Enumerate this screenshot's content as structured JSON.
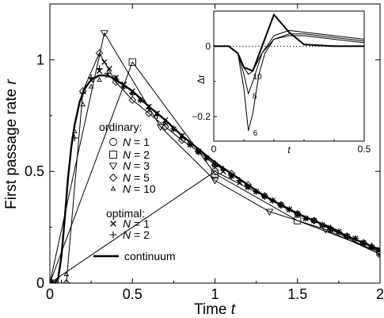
{
  "chart_data": [
    {
      "type": "line",
      "xlabel": "Time",
      "xlabel_var": "t",
      "ylabel": "First passage rate",
      "ylabel_var": "r",
      "xlim": [
        0,
        2
      ],
      "ylim": [
        0,
        1.25
      ],
      "xticks": [
        0,
        0.5,
        1,
        1.5,
        2
      ],
      "xtick_labels": [
        "0",
        "0.5",
        "1",
        "1.5",
        "2"
      ],
      "yticks": [
        0,
        0.5,
        1
      ],
      "ytick_labels": [
        "0",
        "0.5",
        "1"
      ],
      "grid": false,
      "legend": {
        "placement": "center",
        "ordinary_title": "ordinary:",
        "optimal_title": "optimal:",
        "entries": [
          {
            "marker": "circle",
            "text": "= 1",
            "var": "N"
          },
          {
            "marker": "square",
            "text": "= 2",
            "var": "N"
          },
          {
            "marker": "triangle-down",
            "text": "= 3",
            "var": "N"
          },
          {
            "marker": "diamond",
            "text": "= 5",
            "var": "N"
          },
          {
            "marker": "triangle-up",
            "text": "= 10",
            "var": "N"
          },
          {
            "marker": "x",
            "text": "= 1",
            "var": "N"
          },
          {
            "marker": "plus",
            "text": "= 2",
            "var": "N"
          },
          {
            "marker": "line",
            "text": "continuum"
          }
        ]
      },
      "series": [
        {
          "name": "continuum",
          "marker": "line",
          "width": 2.4,
          "points": [
            [
              0.0,
              0
            ],
            [
              0.03,
              0.001
            ],
            [
              0.05,
              0.02
            ],
            [
              0.07,
              0.12
            ],
            [
              0.09,
              0.29
            ],
            [
              0.11,
              0.47
            ],
            [
              0.13,
              0.61
            ],
            [
              0.15,
              0.71
            ],
            [
              0.18,
              0.81
            ],
            [
              0.21,
              0.87
            ],
            [
              0.25,
              0.91
            ],
            [
              0.3,
              0.93
            ],
            [
              0.35,
              0.93
            ],
            [
              0.4,
              0.91
            ],
            [
              0.5,
              0.86
            ],
            [
              0.6,
              0.79
            ],
            [
              0.7,
              0.73
            ],
            [
              0.8,
              0.66
            ],
            [
              0.9,
              0.6
            ],
            [
              1.0,
              0.54
            ],
            [
              1.1,
              0.49
            ],
            [
              1.2,
              0.44
            ],
            [
              1.3,
              0.39
            ],
            [
              1.4,
              0.35
            ],
            [
              1.5,
              0.31
            ],
            [
              1.6,
              0.28
            ],
            [
              1.7,
              0.25
            ],
            [
              1.8,
              0.21
            ],
            [
              1.9,
              0.18
            ],
            [
              2.0,
              0.15
            ]
          ]
        },
        {
          "name": "N = 1",
          "marker": "circle",
          "line": true,
          "points": [
            [
              0.0,
              0
            ],
            [
              1.0,
              0.5
            ],
            [
              2.0,
              0.13
            ]
          ]
        },
        {
          "name": "N = 2",
          "marker": "square",
          "line": true,
          "points": [
            [
              0.0,
              0
            ],
            [
              0.5,
              0.99
            ],
            [
              1.0,
              0.49
            ],
            [
              1.5,
              0.28
            ],
            [
              2.0,
              0.14
            ]
          ]
        },
        {
          "name": "N = 3",
          "marker": "triangle-down",
          "line": true,
          "points": [
            [
              0.0,
              0
            ],
            [
              0.33,
              1.12
            ],
            [
              0.67,
              0.7
            ],
            [
              1.0,
              0.46
            ],
            [
              1.33,
              0.32
            ],
            [
              1.67,
              0.24
            ],
            [
              2.0,
              0.13
            ]
          ]
        },
        {
          "name": "N = 5",
          "marker": "diamond",
          "line": true,
          "points": [
            [
              0.0,
              0
            ],
            [
              0.1,
              0.0
            ],
            [
              0.2,
              0.86
            ],
            [
              0.3,
              1.03
            ],
            [
              0.4,
              0.9
            ],
            [
              0.5,
              0.82
            ],
            [
              0.6,
              0.76
            ],
            [
              0.7,
              0.7
            ],
            [
              0.8,
              0.64
            ],
            [
              0.9,
              0.59
            ],
            [
              1.0,
              0.53
            ],
            [
              1.1,
              0.49
            ],
            [
              1.2,
              0.44
            ],
            [
              1.3,
              0.39
            ],
            [
              1.4,
              0.35
            ],
            [
              1.5,
              0.31
            ],
            [
              1.6,
              0.28
            ],
            [
              1.7,
              0.24
            ],
            [
              1.8,
              0.21
            ],
            [
              1.9,
              0.18
            ],
            [
              2.0,
              0.14
            ]
          ]
        },
        {
          "name": "N = 10",
          "marker": "triangle-up",
          "line": false,
          "points": [
            [
              0.05,
              0
            ],
            [
              0.1,
              0.04
            ],
            [
              0.15,
              0.68
            ],
            [
              0.2,
              0.8
            ],
            [
              0.25,
              0.88
            ],
            [
              0.3,
              0.91
            ],
            [
              0.35,
              0.93
            ],
            [
              0.4,
              0.92
            ],
            [
              0.45,
              0.88
            ],
            [
              0.5,
              0.85
            ],
            [
              0.55,
              0.82
            ],
            [
              0.6,
              0.79
            ],
            [
              0.65,
              0.76
            ],
            [
              0.7,
              0.72
            ],
            [
              0.75,
              0.69
            ],
            [
              0.8,
              0.66
            ],
            [
              0.85,
              0.62
            ],
            [
              0.9,
              0.59
            ],
            [
              0.95,
              0.56
            ],
            [
              1.0,
              0.54
            ],
            [
              1.05,
              0.51
            ],
            [
              1.1,
              0.48
            ],
            [
              1.15,
              0.46
            ],
            [
              1.2,
              0.43
            ],
            [
              1.25,
              0.41
            ],
            [
              1.3,
              0.39
            ],
            [
              1.35,
              0.37
            ],
            [
              1.4,
              0.35
            ],
            [
              1.45,
              0.33
            ],
            [
              1.5,
              0.31
            ],
            [
              1.55,
              0.29
            ],
            [
              1.6,
              0.28
            ],
            [
              1.65,
              0.26
            ],
            [
              1.7,
              0.25
            ],
            [
              1.75,
              0.23
            ],
            [
              1.8,
              0.21
            ],
            [
              1.85,
              0.2
            ],
            [
              1.9,
              0.18
            ],
            [
              1.95,
              0.17
            ],
            [
              2.0,
              0.15
            ]
          ]
        },
        {
          "name": "optimal N = 1",
          "marker": "x",
          "line": false,
          "points": [
            [
              0.25,
              0.91
            ],
            [
              0.3,
              0.95
            ],
            [
              0.33,
              0.99
            ],
            [
              0.36,
              0.96
            ],
            [
              0.4,
              0.92
            ],
            [
              0.45,
              0.89
            ],
            [
              0.5,
              0.86
            ],
            [
              0.55,
              0.82
            ],
            [
              0.6,
              0.79
            ],
            [
              0.65,
              0.76
            ],
            [
              0.7,
              0.73
            ],
            [
              0.75,
              0.69
            ],
            [
              0.8,
              0.66
            ],
            [
              0.85,
              0.62
            ],
            [
              0.9,
              0.59
            ],
            [
              0.95,
              0.56
            ],
            [
              1.0,
              0.53
            ],
            [
              1.05,
              0.5
            ],
            [
              1.1,
              0.48
            ],
            [
              1.15,
              0.45
            ],
            [
              1.2,
              0.43
            ],
            [
              1.25,
              0.41
            ],
            [
              1.3,
              0.39
            ],
            [
              1.35,
              0.37
            ],
            [
              1.4,
              0.35
            ],
            [
              1.45,
              0.33
            ],
            [
              1.5,
              0.31
            ],
            [
              1.55,
              0.29
            ],
            [
              1.6,
              0.28
            ],
            [
              1.65,
              0.26
            ],
            [
              1.7,
              0.24
            ],
            [
              1.75,
              0.23
            ],
            [
              1.8,
              0.21
            ],
            [
              1.85,
              0.2
            ],
            [
              1.9,
              0.18
            ],
            [
              1.95,
              0.16
            ],
            [
              2.0,
              0.15
            ]
          ]
        },
        {
          "name": "optimal N = 2",
          "marker": "plus",
          "line": false,
          "points": [
            [
              0.03,
              0
            ],
            [
              0.07,
              0.0
            ],
            [
              0.15,
              0.65
            ],
            [
              0.2,
              0.85
            ],
            [
              0.25,
              0.92
            ],
            [
              0.3,
              0.96
            ],
            [
              0.35,
              0.94
            ],
            [
              0.4,
              0.91
            ],
            [
              0.45,
              0.88
            ],
            [
              0.5,
              0.85
            ],
            [
              0.55,
              0.82
            ],
            [
              0.6,
              0.78
            ],
            [
              0.65,
              0.75
            ],
            [
              0.7,
              0.72
            ],
            [
              0.75,
              0.69
            ],
            [
              0.8,
              0.65
            ],
            [
              0.85,
              0.62
            ],
            [
              0.9,
              0.59
            ],
            [
              0.95,
              0.56
            ],
            [
              1.0,
              0.53
            ],
            [
              1.05,
              0.51
            ],
            [
              1.1,
              0.48
            ],
            [
              1.15,
              0.46
            ],
            [
              1.2,
              0.43
            ],
            [
              1.25,
              0.41
            ],
            [
              1.3,
              0.39
            ],
            [
              1.35,
              0.37
            ],
            [
              1.4,
              0.35
            ],
            [
              1.45,
              0.33
            ],
            [
              1.5,
              0.31
            ],
            [
              1.55,
              0.29
            ],
            [
              1.6,
              0.28
            ],
            [
              1.65,
              0.26
            ],
            [
              1.7,
              0.24
            ],
            [
              1.75,
              0.23
            ],
            [
              1.8,
              0.21
            ],
            [
              1.85,
              0.2
            ],
            [
              1.9,
              0.18
            ],
            [
              1.95,
              0.16
            ],
            [
              2.0,
              0.15
            ]
          ]
        }
      ]
    },
    {
      "type": "line",
      "panel": "inset",
      "xlabel": "t",
      "ylabel": "Δr",
      "xlim": [
        0,
        0.5
      ],
      "ylim": [
        -0.27,
        0.1
      ],
      "xticks": [
        0,
        0.5
      ],
      "xtick_labels": [
        "0",
        "0.5"
      ],
      "yticks": [
        0,
        -0.2
      ],
      "ytick_labels": [
        "0",
        "−0.2"
      ],
      "zero_line": "dotted",
      "series": [
        {
          "name": "6",
          "width": 1.0,
          "points": [
            [
              0.0,
              0
            ],
            [
              0.05,
              0.0
            ],
            [
              0.08,
              -0.02
            ],
            [
              0.1,
              -0.12
            ],
            [
              0.115,
              -0.24
            ],
            [
              0.13,
              -0.19
            ],
            [
              0.15,
              -0.08
            ],
            [
              0.17,
              -0.02
            ],
            [
              0.2,
              0.02
            ],
            [
              0.25,
              0.03
            ],
            [
              0.3,
              0.03
            ],
            [
              0.4,
              0.02
            ],
            [
              0.5,
              0.01
            ]
          ]
        },
        {
          "name": "8",
          "width": 1.0,
          "points": [
            [
              0.0,
              0
            ],
            [
              0.05,
              0.0
            ],
            [
              0.08,
              -0.02
            ],
            [
              0.1,
              -0.08
            ],
            [
              0.115,
              -0.135
            ],
            [
              0.13,
              -0.1
            ],
            [
              0.16,
              -0.02
            ],
            [
              0.2,
              0.02
            ],
            [
              0.25,
              0.035
            ],
            [
              0.3,
              0.035
            ],
            [
              0.4,
              0.025
            ],
            [
              0.5,
              0.015
            ]
          ]
        },
        {
          "name": "10",
          "width": 1.0,
          "points": [
            [
              0.0,
              0
            ],
            [
              0.05,
              0.0
            ],
            [
              0.08,
              -0.02
            ],
            [
              0.1,
              -0.06
            ],
            [
              0.115,
              -0.08
            ],
            [
              0.13,
              -0.07
            ],
            [
              0.16,
              -0.02
            ],
            [
              0.2,
              0.03
            ],
            [
              0.25,
              0.045
            ],
            [
              0.3,
              0.04
            ],
            [
              0.4,
              0.03
            ],
            [
              0.5,
              0.02
            ]
          ]
        },
        {
          "name": "",
          "width": 2.0,
          "points": [
            [
              0.0,
              0
            ],
            [
              0.05,
              0.0
            ],
            [
              0.08,
              -0.02
            ],
            [
              0.1,
              -0.06
            ],
            [
              0.13,
              -0.07
            ],
            [
              0.2,
              0.09
            ],
            [
              0.25,
              0.04
            ],
            [
              0.3,
              0.005
            ],
            [
              0.4,
              0.0
            ],
            [
              0.5,
              0.0
            ]
          ]
        }
      ],
      "curve_labels": [
        {
          "text": "10",
          "x": 0.12,
          "y": -0.085
        },
        {
          "text": "8",
          "x": 0.118,
          "y": -0.14
        },
        {
          "text": "6",
          "x": 0.12,
          "y": -0.245
        }
      ]
    }
  ]
}
